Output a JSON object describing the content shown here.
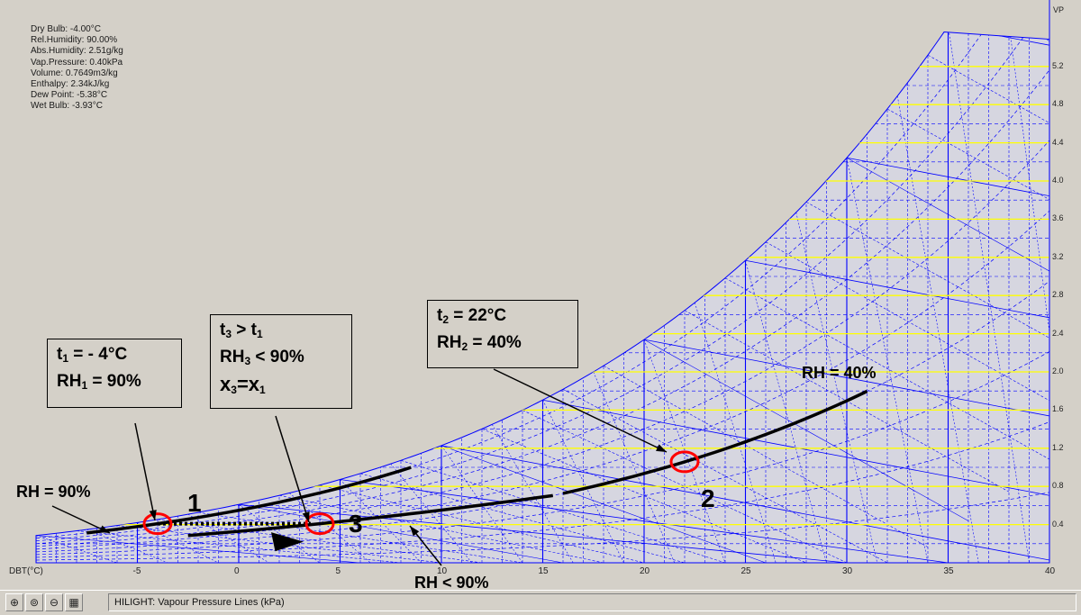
{
  "readout": {
    "dry_bulb": "Dry Bulb: -4.00°C",
    "rel_humidity": "Rel.Humidity: 90.00%",
    "abs_humidity": "Abs.Humidity: 2.51g/kg",
    "vap_pressure": "Vap.Pressure: 0.40kPa",
    "volume": "Volume: 0.7649m3/kg",
    "enthalpy": "Enthalpy: 2.34kJ/kg",
    "dew_point": "Dew Point: -5.38°C",
    "wet_bulb": "Wet Bulb: -3.93°C"
  },
  "axes": {
    "x_label": "DBT(°C)",
    "y_label": "VP",
    "x_ticks": [
      "-5",
      "0",
      "5",
      "10",
      "15",
      "20",
      "25",
      "30",
      "35",
      "40"
    ],
    "y_ticks": [
      "5.2",
      "4.8",
      "4.4",
      "4.0",
      "3.6",
      "3.2",
      "2.8",
      "2.4",
      "2.0",
      "1.6",
      "1.2",
      "0.8",
      "0.4"
    ]
  },
  "annotations": {
    "box1_line1": "t",
    "box1_sub1": "1",
    "box1_rest1": " = - 4°C",
    "box1_line2": "RH",
    "box1_sub2": "1",
    "box1_rest2": " = 90%",
    "box3_line1": "t",
    "box3_sub1": "3",
    "box3_mid1": " > t",
    "box3_sub1b": "1",
    "box3_line2": "RH",
    "box3_sub2": "3",
    "box3_rest2": " < 90%",
    "box3_line3": "x",
    "box3_sub3": "3",
    "box3_mid3": "=x",
    "box3_sub3b": "1",
    "box2_line1": "t",
    "box2_sub1": "2",
    "box2_rest1": " = 22°C",
    "box2_line2": "RH",
    "box2_sub2": "2",
    "box2_rest2": " = 40%",
    "rh90": "RH = 90%",
    "rh40": "RH = 40%",
    "rh_lt_90": "RH < 90%",
    "point1": "1",
    "point2": "2",
    "point3": "3"
  },
  "statusbar": {
    "hilight": "HILIGHT: Vapour Pressure Lines (kPa)",
    "buttons": [
      "zoom-in-icon",
      "zoom-extents-icon",
      "zoom-out-icon",
      "chart-settings-icon"
    ]
  },
  "colors": {
    "grid": "#0000ff",
    "vp_lines": "#ffff00",
    "marker": "#ff0000",
    "process": "#000000"
  },
  "chart_data": {
    "type": "line",
    "x_range": [
      -10,
      40
    ],
    "y_range": [
      0,
      5.6
    ],
    "xlabel": "DBT(°C)",
    "ylabel": "VP",
    "points": [
      {
        "name": "1",
        "dbt": -4,
        "rh": 90
      },
      {
        "name": "3",
        "dbt": 4,
        "rh": 55
      },
      {
        "name": "2",
        "dbt": 22,
        "rh": 40
      }
    ]
  }
}
